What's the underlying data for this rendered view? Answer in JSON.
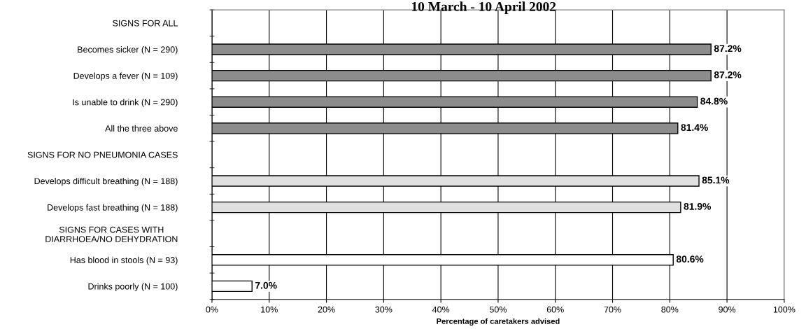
{
  "chart_data": {
    "type": "bar",
    "orientation": "horizontal",
    "title": "10 March - 10 April 2002",
    "xlabel": "Percentage of caretakers advised",
    "categories": [
      "SIGNS FOR ALL",
      "Becomes sicker (N = 290)",
      "Develops a fever (N = 109)",
      "Is unable to drink (N = 290)",
      "All the three above",
      "SIGNS FOR NO PNEUMONIA CASES",
      "Develops difficult breathing (N = 188)",
      "Develops fast breathing (N = 188)",
      "SIGNS FOR CASES WITH\nDIARRHOEA/NO DEHYDRATION",
      "Has blood in stools (N = 93)",
      "Drinks poorly (N = 100)"
    ],
    "series": [
      {
        "color": "#8c8c8c",
        "values": [
          null,
          87.2,
          87.2,
          84.8,
          81.4,
          null,
          null,
          null,
          null,
          null,
          null
        ],
        "value_labels": [
          null,
          "87.2%",
          "87.2%",
          "84.8%",
          "81.4%",
          null,
          null,
          null,
          null,
          null,
          null
        ]
      },
      {
        "color": "#e0e0e0",
        "values": [
          null,
          null,
          null,
          null,
          null,
          null,
          85.1,
          81.9,
          null,
          null,
          null
        ],
        "value_labels": [
          null,
          null,
          null,
          null,
          null,
          null,
          "85.1%",
          "81.9%",
          null,
          null,
          null
        ]
      },
      {
        "color": "#ffffff",
        "values": [
          null,
          null,
          null,
          null,
          null,
          null,
          null,
          null,
          null,
          80.6,
          7.0
        ],
        "value_labels": [
          null,
          null,
          null,
          null,
          null,
          null,
          null,
          null,
          null,
          "80.6%",
          "7.0%"
        ]
      }
    ],
    "xlim": [
      0,
      100
    ],
    "xticks": [
      {
        "value": 0,
        "label": "0%"
      },
      {
        "value": 10,
        "label": "10%"
      },
      {
        "value": 20,
        "label": "20%"
      },
      {
        "value": 30,
        "label": "30%"
      },
      {
        "value": 40,
        "label": "40%"
      },
      {
        "value": 50,
        "label": "50%"
      },
      {
        "value": 60,
        "label": "60%"
      },
      {
        "value": 70,
        "label": "70%"
      },
      {
        "value": 80,
        "label": "80%"
      },
      {
        "value": 90,
        "label": "90%"
      },
      {
        "value": 100,
        "label": "100%"
      }
    ],
    "grid": "x"
  }
}
